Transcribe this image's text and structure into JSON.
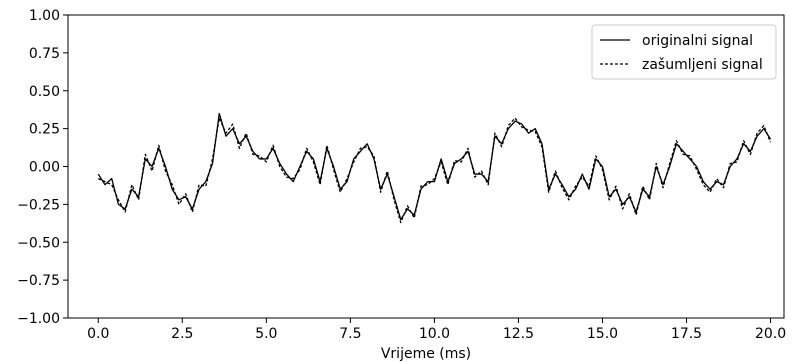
{
  "chart_data": {
    "type": "line",
    "title": "",
    "xlabel": "Vrijeme (ms)",
    "ylabel": "",
    "xlim": [
      -0.9,
      20.4
    ],
    "ylim": [
      -1.0,
      1.0
    ],
    "xticks": [
      0.0,
      2.5,
      5.0,
      7.5,
      10.0,
      12.5,
      15.0,
      17.5,
      20.0
    ],
    "xtick_labels": [
      "0.0",
      "2.5",
      "5.0",
      "7.5",
      "10.0",
      "12.5",
      "15.0",
      "17.5",
      "20.0"
    ],
    "yticks": [
      1.0,
      0.75,
      0.5,
      0.25,
      0.0,
      -0.25,
      -0.5,
      -0.75,
      -1.0
    ],
    "ytick_labels": [
      "1.00",
      "0.75",
      "0.50",
      "0.25",
      "0.00",
      "−0.25",
      "−0.50",
      "−0.75",
      "−1.00"
    ],
    "grid": false,
    "legend": {
      "placement": "top-right"
    },
    "series": [
      {
        "name": "originalni signal",
        "style": "solid",
        "color": "#000000",
        "x": [
          0.0,
          0.2,
          0.4,
          0.6,
          0.8,
          1.0,
          1.2,
          1.4,
          1.6,
          1.8,
          2.0,
          2.2,
          2.4,
          2.6,
          2.8,
          3.0,
          3.2,
          3.4,
          3.6,
          3.8,
          4.0,
          4.2,
          4.4,
          4.6,
          4.8,
          5.0,
          5.2,
          5.4,
          5.6,
          5.8,
          6.0,
          6.2,
          6.4,
          6.6,
          6.8,
          7.0,
          7.2,
          7.4,
          7.6,
          7.8,
          8.0,
          8.2,
          8.4,
          8.6,
          8.8,
          9.0,
          9.2,
          9.4,
          9.6,
          9.8,
          10.0,
          10.2,
          10.4,
          10.6,
          10.8,
          11.0,
          11.2,
          11.4,
          11.6,
          11.8,
          12.0,
          12.2,
          12.4,
          12.6,
          12.8,
          13.0,
          13.2,
          13.4,
          13.6,
          13.8,
          14.0,
          14.2,
          14.4,
          14.6,
          14.8,
          15.0,
          15.2,
          15.4,
          15.6,
          15.8,
          16.0,
          16.2,
          16.4,
          16.6,
          16.8,
          17.0,
          17.2,
          17.4,
          17.6,
          17.8,
          18.0,
          18.2,
          18.4,
          18.6,
          18.8,
          19.0,
          19.2,
          19.4,
          19.6,
          19.8,
          20.0
        ],
        "y": [
          -0.05,
          -0.12,
          -0.08,
          -0.25,
          -0.28,
          -0.15,
          -0.2,
          0.05,
          0.0,
          0.12,
          0.0,
          -0.15,
          -0.22,
          -0.2,
          -0.28,
          -0.15,
          -0.1,
          0.02,
          0.35,
          0.2,
          0.25,
          0.15,
          0.2,
          0.1,
          0.05,
          0.05,
          0.12,
          0.02,
          -0.05,
          -0.1,
          0.0,
          0.1,
          0.05,
          -0.1,
          0.12,
          0.0,
          -0.15,
          -0.1,
          0.05,
          0.1,
          0.15,
          0.05,
          -0.15,
          -0.05,
          -0.2,
          -0.35,
          -0.28,
          -0.32,
          -0.15,
          -0.1,
          -0.1,
          0.05,
          -0.1,
          0.02,
          0.05,
          0.1,
          -0.05,
          -0.05,
          -0.1,
          0.2,
          0.15,
          0.25,
          0.3,
          0.28,
          0.22,
          0.25,
          0.15,
          -0.15,
          -0.05,
          -0.12,
          -0.2,
          -0.15,
          -0.05,
          -0.15,
          0.05,
          0.0,
          -0.2,
          -0.15,
          -0.25,
          -0.2,
          -0.3,
          -0.15,
          -0.2,
          0.0,
          -0.12,
          0.0,
          0.15,
          0.1,
          0.05,
          0.0,
          -0.1,
          -0.15,
          -0.1,
          -0.12,
          0.0,
          0.05,
          0.15,
          0.1,
          0.2,
          0.25,
          0.18
        ]
      },
      {
        "name": "zašumljeni signal",
        "style": "dashed",
        "color": "#000000",
        "x": [
          0.0,
          0.2,
          0.4,
          0.6,
          0.8,
          1.0,
          1.2,
          1.4,
          1.6,
          1.8,
          2.0,
          2.2,
          2.4,
          2.6,
          2.8,
          3.0,
          3.2,
          3.4,
          3.6,
          3.8,
          4.0,
          4.2,
          4.4,
          4.6,
          4.8,
          5.0,
          5.2,
          5.4,
          5.6,
          5.8,
          6.0,
          6.2,
          6.4,
          6.6,
          6.8,
          7.0,
          7.2,
          7.4,
          7.6,
          7.8,
          8.0,
          8.2,
          8.4,
          8.6,
          8.8,
          9.0,
          9.2,
          9.4,
          9.6,
          9.8,
          10.0,
          10.2,
          10.4,
          10.6,
          10.8,
          11.0,
          11.2,
          11.4,
          11.6,
          11.8,
          12.0,
          12.2,
          12.4,
          12.6,
          12.8,
          13.0,
          13.2,
          13.4,
          13.6,
          13.8,
          14.0,
          14.2,
          14.4,
          14.6,
          14.8,
          15.0,
          15.2,
          15.4,
          15.6,
          15.8,
          16.0,
          16.2,
          16.4,
          16.6,
          16.8,
          17.0,
          17.2,
          17.4,
          17.6,
          17.8,
          18.0,
          18.2,
          18.4,
          18.6,
          18.8,
          19.0,
          19.2,
          19.4,
          19.6,
          19.8,
          20.0
        ],
        "y": [
          -0.08,
          -0.1,
          -0.12,
          -0.22,
          -0.3,
          -0.12,
          -0.22,
          0.08,
          -0.03,
          0.14,
          -0.03,
          -0.12,
          -0.25,
          -0.18,
          -0.3,
          -0.12,
          -0.13,
          0.05,
          0.32,
          0.22,
          0.28,
          0.12,
          0.22,
          0.08,
          0.07,
          0.03,
          0.14,
          0.0,
          -0.07,
          -0.08,
          -0.02,
          0.12,
          0.03,
          -0.12,
          0.14,
          -0.02,
          -0.17,
          -0.08,
          0.03,
          0.12,
          0.13,
          0.07,
          -0.17,
          -0.03,
          -0.22,
          -0.37,
          -0.26,
          -0.34,
          -0.13,
          -0.12,
          -0.08,
          0.03,
          -0.12,
          0.04,
          0.03,
          0.12,
          -0.07,
          -0.03,
          -0.12,
          0.22,
          0.13,
          0.27,
          0.32,
          0.26,
          0.24,
          0.23,
          0.13,
          -0.17,
          -0.03,
          -0.14,
          -0.22,
          -0.13,
          -0.07,
          -0.13,
          0.07,
          -0.02,
          -0.22,
          -0.13,
          -0.28,
          -0.18,
          -0.32,
          -0.13,
          -0.22,
          0.02,
          -0.14,
          0.02,
          0.17,
          0.08,
          0.07,
          -0.02,
          -0.12,
          -0.17,
          -0.08,
          -0.14,
          0.02,
          0.03,
          0.17,
          0.08,
          0.22,
          0.27,
          0.16
        ]
      }
    ]
  }
}
